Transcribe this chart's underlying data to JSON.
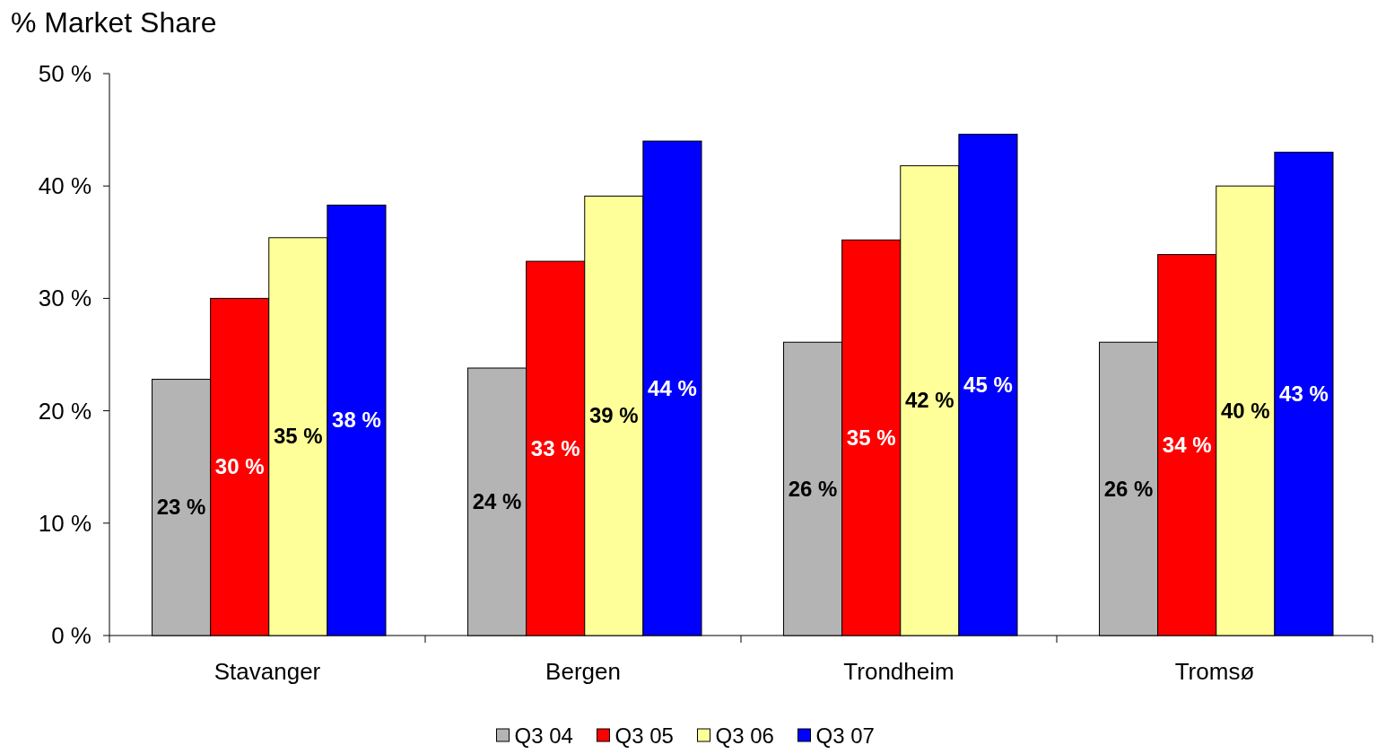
{
  "chart_data": {
    "type": "bar",
    "title": "% Market Share",
    "categories": [
      "Stavanger",
      "Bergen",
      "Trondheim",
      "Tromsø"
    ],
    "series": [
      {
        "name": "Q3 04",
        "color": "#b4b4b4",
        "values": [
          22.8,
          23.8,
          26.1,
          26.1
        ],
        "value_labels": [
          "23 %",
          "24 %",
          "26 %",
          "26 %"
        ]
      },
      {
        "name": "Q3 05",
        "color": "#ff0000",
        "values": [
          30,
          33.3,
          35.2,
          33.9
        ],
        "value_labels": [
          "30 %",
          "33 %",
          "35 %",
          "34 %"
        ]
      },
      {
        "name": "Q3 06",
        "color": "#ffff99",
        "values": [
          35.4,
          39.1,
          41.8,
          40
        ],
        "value_labels": [
          "35 %",
          "39 %",
          "42 %",
          "40 %"
        ]
      },
      {
        "name": "Q3 07",
        "color": "#0000ff",
        "values": [
          38.3,
          44,
          44.6,
          43
        ],
        "value_labels": [
          "38 %",
          "44 %",
          "45 %",
          "43 %"
        ]
      }
    ],
    "ylim": [
      0,
      50
    ],
    "yticks": [
      {
        "value": 0,
        "label": "0 %"
      },
      {
        "value": 10,
        "label": "10 %"
      },
      {
        "value": 20,
        "label": "20 %"
      },
      {
        "value": 30,
        "label": "30 %"
      },
      {
        "value": 40,
        "label": "40 %"
      },
      {
        "value": 50,
        "label": "50 %"
      }
    ],
    "grid": false,
    "legend": "bottom"
  }
}
